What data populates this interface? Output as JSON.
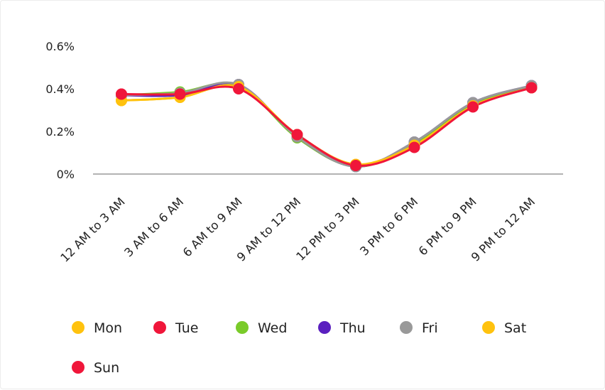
{
  "chart_data": {
    "type": "line",
    "title": "",
    "xlabel": "",
    "ylabel": "",
    "categories": [
      "12 AM to 3 AM",
      "3 AM to 6 AM",
      "6 AM to 9 AM",
      "9 AM to 12 PM",
      "12 PM to 3 PM",
      "3 PM to 6 PM",
      "6 PM to 9 PM",
      "9 PM to 12 AM"
    ],
    "y_ticks": [
      {
        "value": 0,
        "label": "0%"
      },
      {
        "value": 0.2,
        "label": "0.2%"
      },
      {
        "value": 0.4,
        "label": "0.4%"
      },
      {
        "value": 0.6,
        "label": "0.6%"
      }
    ],
    "ylim": [
      0,
      0.6
    ],
    "grid": false,
    "legend_position": "bottom",
    "series": [
      {
        "name": "Mon",
        "color": "#FFC20E",
        "values": [
          0.345,
          0.36,
          0.41,
          0.18,
          0.045,
          0.14,
          0.33,
          0.41
        ]
      },
      {
        "name": "Tue",
        "color": "#F0163A",
        "values": [
          0.375,
          0.375,
          0.405,
          0.185,
          0.04,
          0.13,
          0.32,
          0.405
        ]
      },
      {
        "name": "Wed",
        "color": "#7ACB2A",
        "values": [
          0.37,
          0.385,
          0.415,
          0.17,
          0.035,
          0.14,
          0.33,
          0.41
        ]
      },
      {
        "name": "Thu",
        "color": "#5A1FBF",
        "values": [
          0.37,
          0.37,
          0.42,
          0.175,
          0.035,
          0.15,
          0.335,
          0.415
        ]
      },
      {
        "name": "Fri",
        "color": "#999999",
        "values": [
          0.37,
          0.38,
          0.42,
          0.175,
          0.035,
          0.15,
          0.335,
          0.415
        ]
      },
      {
        "name": "Sat",
        "color": "#FFC20E",
        "values": [
          0.345,
          0.36,
          0.41,
          0.185,
          0.045,
          0.135,
          0.32,
          0.405
        ]
      },
      {
        "name": "Sun",
        "color": "#F0163A",
        "values": [
          0.375,
          0.375,
          0.4,
          0.185,
          0.04,
          0.125,
          0.315,
          0.405
        ]
      }
    ]
  }
}
